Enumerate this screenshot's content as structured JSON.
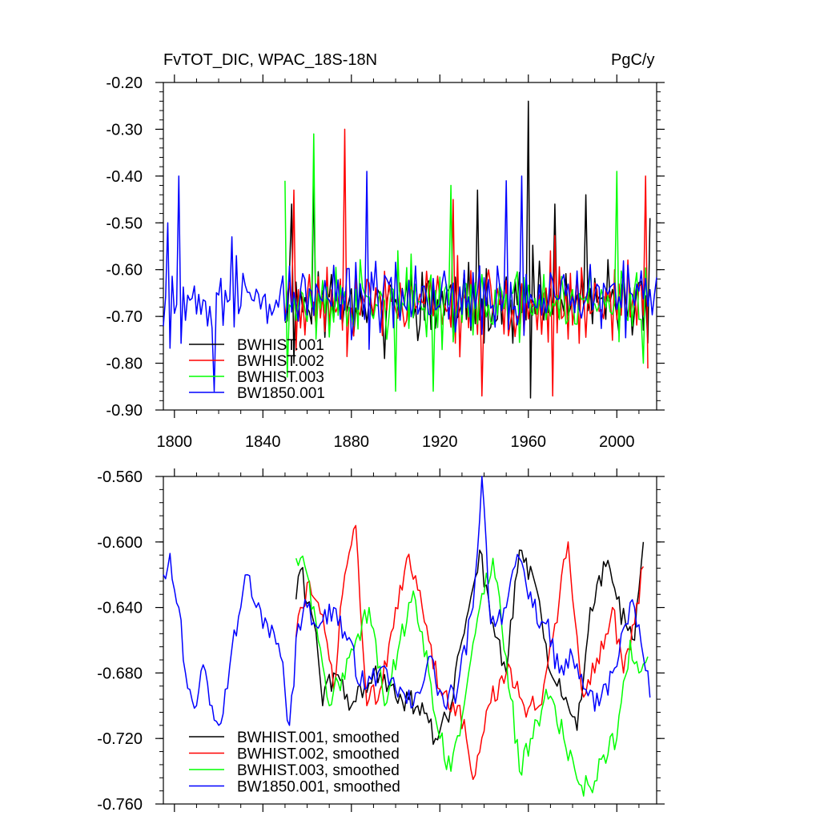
{
  "chart_data": [
    {
      "type": "line",
      "title": "FvTOT_DIC, WPAC_18S-18N",
      "units": "PgC/y",
      "xlim": [
        1795,
        2018
      ],
      "ylim": [
        -0.9,
        -0.2
      ],
      "x_ticks": [
        1800,
        1840,
        1880,
        1920,
        1960,
        2000
      ],
      "y_ticks": [
        "-0.20",
        "-0.30",
        "-0.40",
        "-0.50",
        "-0.60",
        "-0.70",
        "-0.80",
        "-0.90"
      ],
      "legend_position": "bottom-left",
      "series": [
        {
          "name": "BWHIST.001",
          "color": "#000000",
          "x_start": 1850,
          "x_end": 2015,
          "mean": -0.67,
          "amp": 0.09,
          "seed": 11,
          "spikes": [
            [
              1853,
              -0.46
            ],
            [
              1863,
              -0.41
            ],
            [
              1895,
              -0.79
            ],
            [
              1937,
              -0.43
            ],
            [
              1960,
              -0.24
            ],
            [
              1972,
              -0.46
            ],
            [
              1986,
              -0.44
            ],
            [
              2015,
              -0.49
            ]
          ]
        },
        {
          "name": "BWHIST.002",
          "color": "#ff0000",
          "x_start": 1850,
          "x_end": 2014,
          "mean": -0.67,
          "amp": 0.09,
          "seed": 23,
          "spikes": [
            [
              1854,
              -0.43
            ],
            [
              1877,
              -0.3
            ],
            [
              1926,
              -0.45
            ],
            [
              1939,
              -0.87
            ],
            [
              1971,
              -0.87
            ],
            [
              2013,
              -0.4
            ]
          ]
        },
        {
          "name": "BWHIST.003",
          "color": "#00ff00",
          "x_start": 1850,
          "x_end": 2014,
          "mean": -0.67,
          "amp": 0.09,
          "seed": 37,
          "spikes": [
            [
              1850,
              -0.41
            ],
            [
              1863,
              -0.31
            ],
            [
              1900,
              -0.86
            ],
            [
              1917,
              -0.86
            ],
            [
              1925,
              -0.42
            ],
            [
              2000,
              -0.39
            ],
            [
              2012,
              -0.8
            ]
          ]
        },
        {
          "name": "BW1850.001",
          "color": "#0000ff",
          "x_start": 1795,
          "x_end": 2018,
          "mean": -0.66,
          "amp": 0.09,
          "seed": 53,
          "spikes": [
            [
              1797,
              -0.5
            ],
            [
              1802,
              -0.4
            ],
            [
              1818,
              -0.86
            ],
            [
              1826,
              -0.53
            ],
            [
              1887,
              -0.39
            ],
            [
              1950,
              -0.41
            ],
            [
              1957,
              -0.4
            ]
          ]
        }
      ]
    },
    {
      "type": "line",
      "title": "",
      "xlim": [
        1795,
        2018
      ],
      "ylim": [
        -0.76,
        -0.56
      ],
      "x_ticks": [
        1800,
        1840,
        1880,
        1920,
        1960,
        2000
      ],
      "y_ticks": [
        "-0.560",
        "-0.600",
        "-0.640",
        "-0.680",
        "-0.720",
        "-0.760"
      ],
      "legend_position": "bottom-left",
      "series": [
        {
          "name": "BWHIST.001, smoothed",
          "color": "#000000",
          "x_start": 1855,
          "x_end": 2012,
          "seed": 61,
          "knots": [
            [
              1855,
              -0.635
            ],
            [
              1857,
              -0.617
            ],
            [
              1864,
              -0.655
            ],
            [
              1867,
              -0.7
            ],
            [
              1872,
              -0.68
            ],
            [
              1880,
              -0.7
            ],
            [
              1890,
              -0.68
            ],
            [
              1900,
              -0.695
            ],
            [
              1910,
              -0.7
            ],
            [
              1918,
              -0.72
            ],
            [
              1925,
              -0.7
            ],
            [
              1930,
              -0.66
            ],
            [
              1938,
              -0.605
            ],
            [
              1944,
              -0.65
            ],
            [
              1950,
              -0.68
            ],
            [
              1956,
              -0.605
            ],
            [
              1962,
              -0.62
            ],
            [
              1970,
              -0.68
            ],
            [
              1978,
              -0.7
            ],
            [
              1982,
              -0.715
            ],
            [
              1988,
              -0.64
            ],
            [
              1995,
              -0.615
            ],
            [
              2000,
              -0.635
            ],
            [
              2004,
              -0.65
            ],
            [
              2008,
              -0.66
            ],
            [
              2012,
              -0.6
            ]
          ]
        },
        {
          "name": "BWHIST.002, smoothed",
          "color": "#ff0000",
          "x_start": 1855,
          "x_end": 2012,
          "seed": 73,
          "knots": [
            [
              1855,
              -0.658
            ],
            [
              1860,
              -0.625
            ],
            [
              1868,
              -0.655
            ],
            [
              1872,
              -0.69
            ],
            [
              1877,
              -0.62
            ],
            [
              1882,
              -0.59
            ],
            [
              1887,
              -0.7
            ],
            [
              1893,
              -0.69
            ],
            [
              1900,
              -0.64
            ],
            [
              1905,
              -0.61
            ],
            [
              1912,
              -0.64
            ],
            [
              1920,
              -0.69
            ],
            [
              1928,
              -0.7
            ],
            [
              1932,
              -0.72
            ],
            [
              1935,
              -0.745
            ],
            [
              1942,
              -0.7
            ],
            [
              1950,
              -0.68
            ],
            [
              1958,
              -0.7
            ],
            [
              1965,
              -0.7
            ],
            [
              1972,
              -0.65
            ],
            [
              1978,
              -0.6
            ],
            [
              1984,
              -0.69
            ],
            [
              1990,
              -0.68
            ],
            [
              1998,
              -0.64
            ],
            [
              2003,
              -0.68
            ],
            [
              2008,
              -0.65
            ],
            [
              2012,
              -0.615
            ]
          ]
        },
        {
          "name": "BWHIST.003, smoothed",
          "color": "#00ff00",
          "x_start": 1855,
          "x_end": 2014,
          "seed": 89,
          "knots": [
            [
              1855,
              -0.61
            ],
            [
              1860,
              -0.62
            ],
            [
              1865,
              -0.66
            ],
            [
              1870,
              -0.7
            ],
            [
              1876,
              -0.68
            ],
            [
              1882,
              -0.66
            ],
            [
              1888,
              -0.64
            ],
            [
              1895,
              -0.7
            ],
            [
              1902,
              -0.66
            ],
            [
              1908,
              -0.63
            ],
            [
              1915,
              -0.68
            ],
            [
              1920,
              -0.72
            ],
            [
              1925,
              -0.74
            ],
            [
              1932,
              -0.69
            ],
            [
              1938,
              -0.64
            ],
            [
              1944,
              -0.61
            ],
            [
              1950,
              -0.67
            ],
            [
              1956,
              -0.74
            ],
            [
              1962,
              -0.72
            ],
            [
              1968,
              -0.69
            ],
            [
              1972,
              -0.7
            ],
            [
              1976,
              -0.72
            ],
            [
              1982,
              -0.745
            ],
            [
              1988,
              -0.75
            ],
            [
              1994,
              -0.73
            ],
            [
              2000,
              -0.72
            ],
            [
              2006,
              -0.66
            ],
            [
              2010,
              -0.68
            ],
            [
              2014,
              -0.67
            ]
          ]
        },
        {
          "name": "BW1850.001, smoothed",
          "color": "#0000ff",
          "x_start": 1795,
          "x_end": 2015,
          "seed": 97,
          "knots": [
            [
              1795,
              -0.62
            ],
            [
              1798,
              -0.607
            ],
            [
              1802,
              -0.64
            ],
            [
              1805,
              -0.68
            ],
            [
              1810,
              -0.7
            ],
            [
              1813,
              -0.675
            ],
            [
              1817,
              -0.7
            ],
            [
              1820,
              -0.712
            ],
            [
              1823,
              -0.69
            ],
            [
              1826,
              -0.665
            ],
            [
              1830,
              -0.64
            ],
            [
              1833,
              -0.62
            ],
            [
              1837,
              -0.64
            ],
            [
              1842,
              -0.65
            ],
            [
              1848,
              -0.67
            ],
            [
              1852,
              -0.712
            ],
            [
              1856,
              -0.65
            ],
            [
              1860,
              -0.64
            ],
            [
              1866,
              -0.65
            ],
            [
              1872,
              -0.64
            ],
            [
              1878,
              -0.66
            ],
            [
              1886,
              -0.69
            ],
            [
              1892,
              -0.68
            ],
            [
              1900,
              -0.69
            ],
            [
              1908,
              -0.7
            ],
            [
              1915,
              -0.67
            ],
            [
              1922,
              -0.7
            ],
            [
              1928,
              -0.69
            ],
            [
              1935,
              -0.64
            ],
            [
              1939,
              -0.56
            ],
            [
              1943,
              -0.65
            ],
            [
              1950,
              -0.64
            ],
            [
              1956,
              -0.61
            ],
            [
              1962,
              -0.64
            ],
            [
              1968,
              -0.65
            ],
            [
              1974,
              -0.68
            ],
            [
              1980,
              -0.67
            ],
            [
              1986,
              -0.69
            ],
            [
              1992,
              -0.7
            ],
            [
              1998,
              -0.68
            ],
            [
              2004,
              -0.65
            ],
            [
              2008,
              -0.64
            ],
            [
              2012,
              -0.67
            ],
            [
              2015,
              -0.695
            ]
          ]
        }
      ]
    }
  ]
}
